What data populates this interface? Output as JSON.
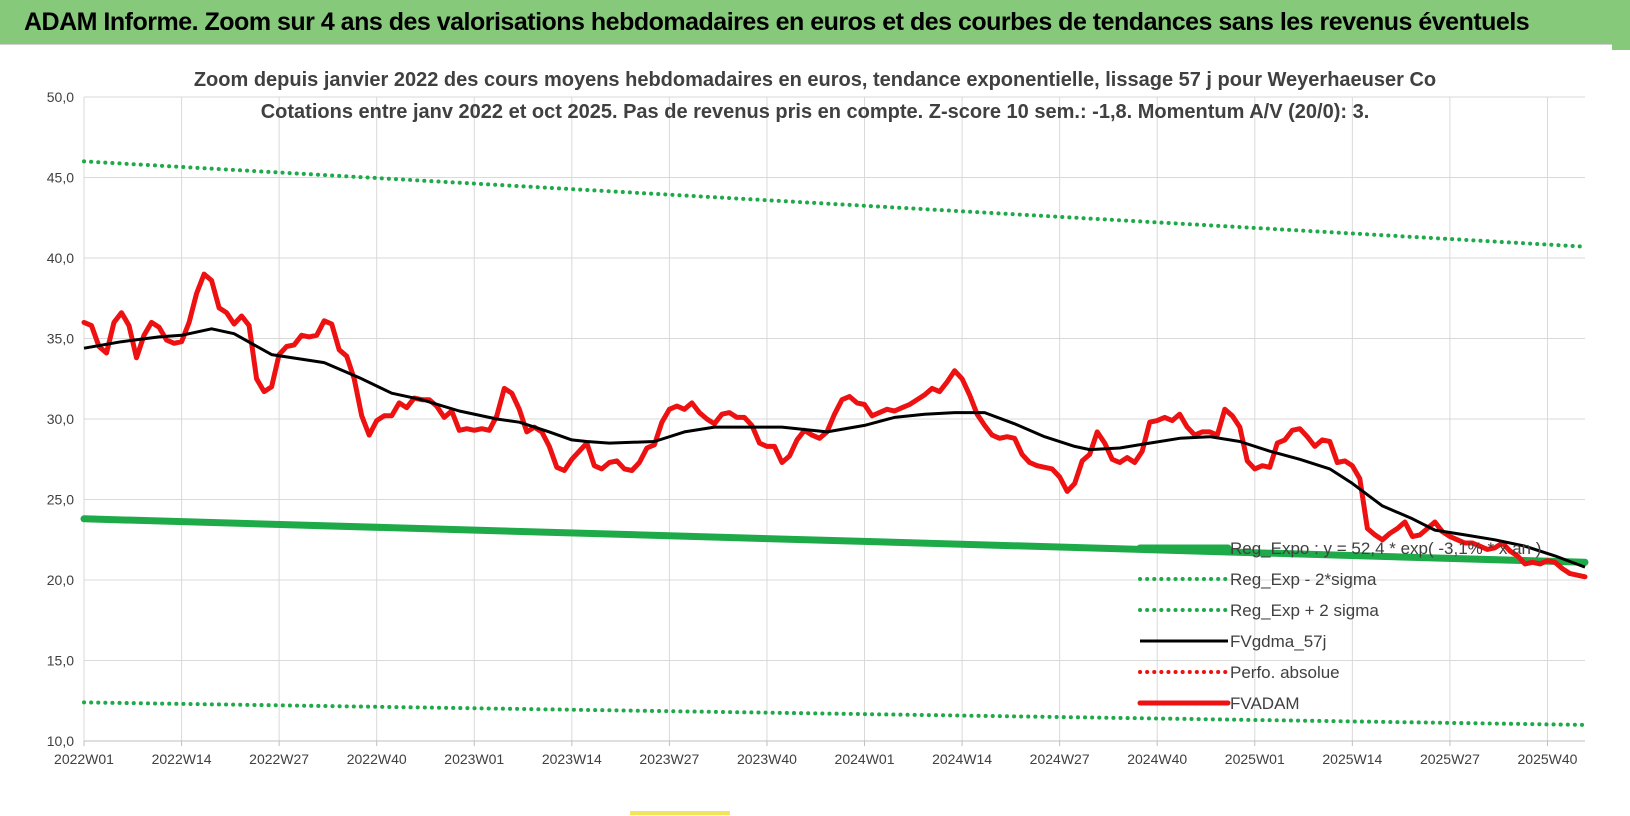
{
  "banner": {
    "title": "ADAM Informe. Zoom sur 4 ans des valorisations hebdomadaires en euros et des courbes de tendances sans les revenus éventuels"
  },
  "colors": {
    "banner_bg": "#86c97a",
    "trend_green": "#1faa4a",
    "price_red": "#ee1111",
    "moving_avg": "#000000",
    "grid": "#d9d9d9"
  },
  "chart_data": {
    "type": "line",
    "title": "Zoom depuis janvier 2022 des cours moyens hebdomadaires en euros, tendance exponentielle, lissage 57 j pour Weyerhaeuser Co",
    "subtitle": "Cotations entre janv 2022 et oct 2025. Pas de revenus pris en compte. Z-score 10 sem.: -1,8. Momentum A/V (20/0): 3.",
    "xlabel": "",
    "ylabel": "",
    "ylim": [
      10,
      50
    ],
    "y_ticks": [
      "10,0",
      "15,0",
      "20,0",
      "25,0",
      "30,0",
      "35,0",
      "40,0",
      "45,0",
      "50,0"
    ],
    "x_tick_labels": [
      "2022W01",
      "2022W14",
      "2022W27",
      "2022W40",
      "2023W01",
      "2023W14",
      "2023W27",
      "2023W40",
      "2024W01",
      "2024W14",
      "2024W27",
      "2024W40",
      "2025W01",
      "2025W14",
      "2025W27",
      "2025W40"
    ],
    "x_tick_weeks": [
      0,
      13,
      26,
      39,
      52,
      65,
      78,
      91,
      104,
      117,
      130,
      143,
      156,
      169,
      182,
      195
    ],
    "x_range_weeks": [
      0,
      200
    ],
    "grid": true,
    "legend_position": "bottom-right",
    "series": [
      {
        "name": "Reg_Expo : y = 52,4 * exp( -3,1% * x an )",
        "style": "thick-solid",
        "color": "#1faa4a",
        "points": [
          [
            0,
            23.8
          ],
          [
            200,
            21.1
          ]
        ]
      },
      {
        "name": "Reg_Exp - 2*sigma",
        "style": "dotted",
        "color": "#1faa4a",
        "points": [
          [
            0,
            12.4
          ],
          [
            200,
            11.0
          ]
        ]
      },
      {
        "name": "Reg_Exp + 2 sigma",
        "style": "dotted",
        "color": "#1faa4a",
        "points": [
          [
            0,
            46.0
          ],
          [
            200,
            40.7
          ]
        ]
      },
      {
        "name": "FVgdma_57j",
        "style": "solid",
        "color": "#000000",
        "points": [
          [
            0,
            34.4
          ],
          [
            5,
            34.8
          ],
          [
            10,
            35.1
          ],
          [
            13,
            35.2
          ],
          [
            17,
            35.6
          ],
          [
            20,
            35.3
          ],
          [
            25,
            34.0
          ],
          [
            32,
            33.5
          ],
          [
            37,
            32.5
          ],
          [
            41,
            31.6
          ],
          [
            45,
            31.2
          ],
          [
            50,
            30.5
          ],
          [
            55,
            30.0
          ],
          [
            58,
            29.8
          ],
          [
            62,
            29.2
          ],
          [
            65,
            28.7
          ],
          [
            67,
            28.6
          ],
          [
            70,
            28.5
          ],
          [
            76,
            28.6
          ],
          [
            80,
            29.2
          ],
          [
            84,
            29.5
          ],
          [
            93,
            29.5
          ],
          [
            99,
            29.2
          ],
          [
            104,
            29.6
          ],
          [
            108,
            30.1
          ],
          [
            112,
            30.3
          ],
          [
            116,
            30.4
          ],
          [
            120,
            30.4
          ],
          [
            124,
            29.7
          ],
          [
            128,
            28.9
          ],
          [
            132,
            28.3
          ],
          [
            134,
            28.1
          ],
          [
            138,
            28.2
          ],
          [
            142,
            28.5
          ],
          [
            146,
            28.8
          ],
          [
            150,
            28.9
          ],
          [
            154,
            28.6
          ],
          [
            158,
            28.0
          ],
          [
            162,
            27.5
          ],
          [
            166,
            26.9
          ],
          [
            169,
            26.0
          ],
          [
            173,
            24.6
          ],
          [
            177,
            23.8
          ],
          [
            180,
            23.1
          ],
          [
            184,
            22.8
          ],
          [
            188,
            22.5
          ],
          [
            192,
            22.1
          ],
          [
            196,
            21.5
          ],
          [
            200,
            20.8
          ]
        ]
      },
      {
        "name": "Perfo. absolue",
        "style": "dotted",
        "color": "#ee1111",
        "points": []
      },
      {
        "name": "FVADAM",
        "style": "thick-solid",
        "color": "#ee1111",
        "points": [
          [
            0,
            36.0
          ],
          [
            1,
            35.8
          ],
          [
            2,
            34.5
          ],
          [
            3,
            34.1
          ],
          [
            4,
            36.0
          ],
          [
            5,
            36.6
          ],
          [
            6,
            35.8
          ],
          [
            7,
            33.8
          ],
          [
            8,
            35.2
          ],
          [
            9,
            36.0
          ],
          [
            10,
            35.7
          ],
          [
            11,
            34.9
          ],
          [
            12,
            34.7
          ],
          [
            13,
            34.8
          ],
          [
            14,
            36.0
          ],
          [
            15,
            37.8
          ],
          [
            16,
            39.0
          ],
          [
            17,
            38.6
          ],
          [
            18,
            36.9
          ],
          [
            19,
            36.6
          ],
          [
            20,
            35.9
          ],
          [
            21,
            36.4
          ],
          [
            22,
            35.8
          ],
          [
            23,
            32.5
          ],
          [
            24,
            31.7
          ],
          [
            25,
            32.0
          ],
          [
            26,
            34.0
          ],
          [
            27,
            34.5
          ],
          [
            28,
            34.6
          ],
          [
            29,
            35.2
          ],
          [
            30,
            35.1
          ],
          [
            31,
            35.2
          ],
          [
            32,
            36.1
          ],
          [
            33,
            35.9
          ],
          [
            34,
            34.3
          ],
          [
            35,
            33.9
          ],
          [
            36,
            32.5
          ],
          [
            37,
            30.2
          ],
          [
            38,
            29.0
          ],
          [
            39,
            29.9
          ],
          [
            40,
            30.2
          ],
          [
            41,
            30.2
          ],
          [
            42,
            31.0
          ],
          [
            43,
            30.7
          ],
          [
            44,
            31.3
          ],
          [
            45,
            31.2
          ],
          [
            46,
            31.2
          ],
          [
            47,
            30.8
          ],
          [
            48,
            30.1
          ],
          [
            49,
            30.5
          ],
          [
            50,
            29.3
          ],
          [
            51,
            29.4
          ],
          [
            52,
            29.3
          ],
          [
            53,
            29.4
          ],
          [
            54,
            29.3
          ],
          [
            55,
            30.2
          ],
          [
            56,
            31.9
          ],
          [
            57,
            31.6
          ],
          [
            58,
            30.6
          ],
          [
            59,
            29.2
          ],
          [
            60,
            29.5
          ],
          [
            61,
            29.2
          ],
          [
            62,
            28.3
          ],
          [
            63,
            27.0
          ],
          [
            64,
            26.8
          ],
          [
            65,
            27.5
          ],
          [
            66,
            28.0
          ],
          [
            67,
            28.5
          ],
          [
            68,
            27.1
          ],
          [
            69,
            26.9
          ],
          [
            70,
            27.3
          ],
          [
            71,
            27.4
          ],
          [
            72,
            26.9
          ],
          [
            73,
            26.8
          ],
          [
            74,
            27.3
          ],
          [
            75,
            28.2
          ],
          [
            76,
            28.4
          ],
          [
            77,
            29.8
          ],
          [
            78,
            30.6
          ],
          [
            79,
            30.8
          ],
          [
            80,
            30.6
          ],
          [
            81,
            31.0
          ],
          [
            82,
            30.4
          ],
          [
            83,
            30.0
          ],
          [
            84,
            29.7
          ],
          [
            85,
            30.3
          ],
          [
            86,
            30.4
          ],
          [
            87,
            30.1
          ],
          [
            88,
            30.1
          ],
          [
            89,
            29.6
          ],
          [
            90,
            28.5
          ],
          [
            91,
            28.3
          ],
          [
            92,
            28.3
          ],
          [
            93,
            27.3
          ],
          [
            94,
            27.7
          ],
          [
            95,
            28.7
          ],
          [
            96,
            29.3
          ],
          [
            97,
            29.0
          ],
          [
            98,
            28.8
          ],
          [
            99,
            29.2
          ],
          [
            100,
            30.3
          ],
          [
            101,
            31.2
          ],
          [
            102,
            31.4
          ],
          [
            103,
            31.0
          ],
          [
            104,
            30.9
          ],
          [
            105,
            30.2
          ],
          [
            106,
            30.4
          ],
          [
            107,
            30.6
          ],
          [
            108,
            30.5
          ],
          [
            109,
            30.7
          ],
          [
            110,
            30.9
          ],
          [
            111,
            31.2
          ],
          [
            112,
            31.5
          ],
          [
            113,
            31.9
          ],
          [
            114,
            31.7
          ],
          [
            115,
            32.3
          ],
          [
            116,
            33.0
          ],
          [
            117,
            32.5
          ],
          [
            118,
            31.5
          ],
          [
            119,
            30.3
          ],
          [
            120,
            29.6
          ],
          [
            121,
            29.0
          ],
          [
            122,
            28.8
          ],
          [
            123,
            28.9
          ],
          [
            124,
            28.8
          ],
          [
            125,
            27.8
          ],
          [
            126,
            27.3
          ],
          [
            127,
            27.1
          ],
          [
            128,
            27.0
          ],
          [
            129,
            26.9
          ],
          [
            130,
            26.4
          ],
          [
            131,
            25.5
          ],
          [
            132,
            26.0
          ],
          [
            133,
            27.4
          ],
          [
            134,
            27.8
          ],
          [
            135,
            29.2
          ],
          [
            136,
            28.5
          ],
          [
            137,
            27.5
          ],
          [
            138,
            27.3
          ],
          [
            139,
            27.6
          ],
          [
            140,
            27.3
          ],
          [
            141,
            28.0
          ],
          [
            142,
            29.8
          ],
          [
            143,
            29.9
          ],
          [
            144,
            30.1
          ],
          [
            145,
            29.9
          ],
          [
            146,
            30.3
          ],
          [
            147,
            29.5
          ],
          [
            148,
            29.0
          ],
          [
            149,
            29.2
          ],
          [
            150,
            29.2
          ],
          [
            151,
            29.0
          ],
          [
            152,
            30.6
          ],
          [
            153,
            30.2
          ],
          [
            154,
            29.5
          ],
          [
            155,
            27.4
          ],
          [
            156,
            26.9
          ],
          [
            157,
            27.1
          ],
          [
            158,
            27.0
          ],
          [
            159,
            28.5
          ],
          [
            160,
            28.7
          ],
          [
            161,
            29.3
          ],
          [
            162,
            29.4
          ],
          [
            163,
            28.9
          ],
          [
            164,
            28.3
          ],
          [
            165,
            28.7
          ],
          [
            166,
            28.6
          ],
          [
            167,
            27.3
          ],
          [
            168,
            27.4
          ],
          [
            169,
            27.1
          ],
          [
            170,
            26.3
          ],
          [
            171,
            23.2
          ],
          [
            172,
            22.8
          ],
          [
            173,
            22.5
          ],
          [
            174,
            22.9
          ],
          [
            175,
            23.2
          ],
          [
            176,
            23.6
          ],
          [
            177,
            22.7
          ],
          [
            178,
            22.8
          ],
          [
            179,
            23.2
          ],
          [
            180,
            23.6
          ],
          [
            181,
            23.0
          ],
          [
            182,
            22.7
          ],
          [
            183,
            22.5
          ],
          [
            184,
            22.3
          ],
          [
            185,
            22.3
          ],
          [
            186,
            22.1
          ],
          [
            187,
            21.9
          ],
          [
            188,
            22.0
          ],
          [
            189,
            22.3
          ],
          [
            190,
            21.8
          ],
          [
            191,
            21.5
          ],
          [
            192,
            21.0
          ],
          [
            193,
            21.1
          ],
          [
            194,
            21.0
          ],
          [
            195,
            21.2
          ],
          [
            196,
            21.1
          ],
          [
            197,
            20.7
          ],
          [
            198,
            20.4
          ],
          [
            199,
            20.3
          ],
          [
            200,
            20.2
          ]
        ]
      }
    ]
  }
}
